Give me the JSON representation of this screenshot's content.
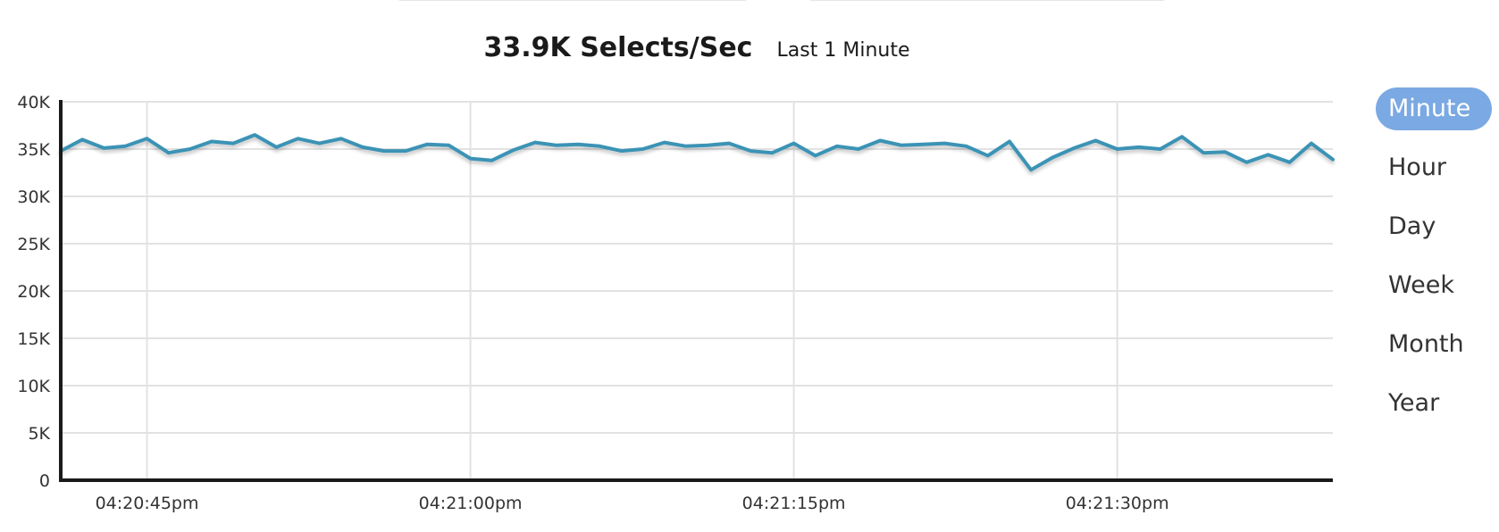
{
  "header": {
    "metric_value": "33.9K Selects/Sec",
    "period_label": "Last 1 Minute"
  },
  "range_selector": {
    "options": [
      "Minute",
      "Hour",
      "Day",
      "Week",
      "Month",
      "Year"
    ],
    "active": "Minute"
  },
  "colors": {
    "line": "#3a93b5",
    "active_button": "#7aa9e3",
    "grid": "#e2e2e2",
    "axis": "#1a1a1a"
  },
  "chart_data": {
    "type": "line",
    "title": "",
    "xlabel": "",
    "ylabel": "",
    "ylim": [
      0,
      40000
    ],
    "y_ticks": [
      0,
      5000,
      10000,
      15000,
      20000,
      25000,
      30000,
      35000,
      40000
    ],
    "y_tick_labels": [
      "0",
      "5K",
      "10K",
      "15K",
      "20K",
      "25K",
      "30K",
      "35K",
      "40K"
    ],
    "x_range_seconds": [
      "04:20:41pm",
      "04:21:40pm"
    ],
    "x_ticks": [
      "04:20:45pm",
      "04:21:00pm",
      "04:21:15pm",
      "04:21:30pm"
    ],
    "grid": true,
    "series": [
      {
        "name": "",
        "x": [
          "04:20:41pm",
          "04:20:42pm",
          "04:20:43pm",
          "04:20:44pm",
          "04:20:45pm",
          "04:20:46pm",
          "04:20:47pm",
          "04:20:48pm",
          "04:20:49pm",
          "04:20:50pm",
          "04:20:51pm",
          "04:20:52pm",
          "04:20:53pm",
          "04:20:54pm",
          "04:20:55pm",
          "04:20:56pm",
          "04:20:57pm",
          "04:20:58pm",
          "04:20:59pm",
          "04:21:00pm",
          "04:21:01pm",
          "04:21:02pm",
          "04:21:03pm",
          "04:21:04pm",
          "04:21:05pm",
          "04:21:06pm",
          "04:21:07pm",
          "04:21:08pm",
          "04:21:09pm",
          "04:21:10pm",
          "04:21:11pm",
          "04:21:12pm",
          "04:21:13pm",
          "04:21:14pm",
          "04:21:15pm",
          "04:21:16pm",
          "04:21:17pm",
          "04:21:18pm",
          "04:21:19pm",
          "04:21:20pm",
          "04:21:21pm",
          "04:21:22pm",
          "04:21:23pm",
          "04:21:24pm",
          "04:21:25pm",
          "04:21:26pm",
          "04:21:27pm",
          "04:21:28pm",
          "04:21:29pm",
          "04:21:30pm",
          "04:21:31pm",
          "04:21:32pm",
          "04:21:33pm",
          "04:21:34pm",
          "04:21:35pm",
          "04:21:36pm",
          "04:21:37pm",
          "04:21:38pm",
          "04:21:39pm",
          "04:21:40pm"
        ],
        "values": [
          34800,
          36000,
          35100,
          35300,
          36100,
          34600,
          35000,
          35800,
          35600,
          36500,
          35200,
          36100,
          35600,
          36100,
          35200,
          34800,
          34800,
          35500,
          35400,
          34000,
          33800,
          34900,
          35700,
          35400,
          35500,
          35300,
          34800,
          35000,
          35700,
          35300,
          35400,
          35600,
          34800,
          34600,
          35600,
          34300,
          35300,
          35000,
          35900,
          35400,
          35500,
          35600,
          35300,
          34300,
          35800,
          32800,
          34100,
          35100,
          35900,
          35000,
          35200,
          35000,
          36300,
          34600,
          34700,
          33600,
          34400,
          33600,
          35600,
          33900
        ]
      }
    ]
  }
}
